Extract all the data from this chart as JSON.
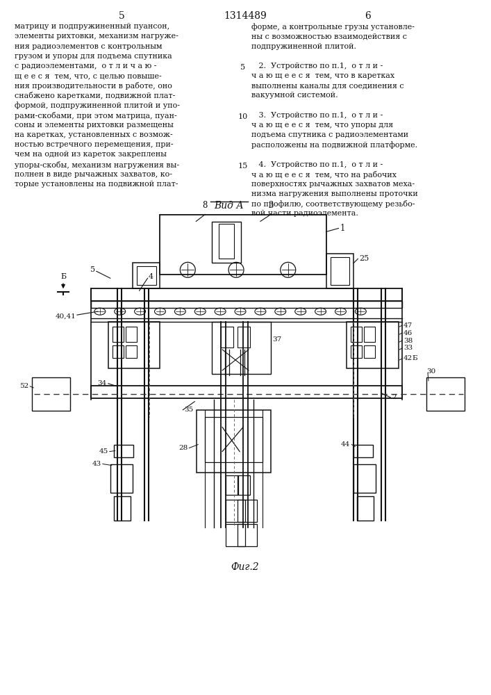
{
  "page_width": 7.07,
  "page_height": 10.0,
  "bg_color": "#ffffff",
  "header_page_left": "5",
  "header_patent": "1314489",
  "header_page_right": "6",
  "text_left_col": [
    "матрицу и подпружиненный пуансон,",
    "элементы рихтовки, механизм нагруже-",
    "ния радиоэлементов с контрольным",
    "грузом и упоры для подъема спутника",
    "с радиоэлементами,  о т л и ч а ю -",
    "щ е е с я  тем, что, с целью повыше-",
    "ния производительности в работе, оно",
    "снабжено каретками, подвижной плат-",
    "формой, подпружиненной плитой и упо-",
    "рами-скобами, при этом матрица, пуан-",
    "соны и элементы рихтовки размещены",
    "на каретках, установленных с возмож-",
    "ностью встречного перемещения, при-",
    "чем на одной из кареток закреплены",
    "упоры-скобы, механизм нагружения вы-",
    "полнен в виде рычажных захватов, ко-",
    "торые установлены на подвижной плат-"
  ],
  "text_right_col": [
    "форме, а контрольные грузы установле-",
    "ны с возможностью взаимодействия с",
    "подпружиненной плитой.",
    "",
    "   2.  Устройство по п.1,  о т л и -",
    "ч а ю щ е е с я  тем, что в каретках",
    "выполнены каналы для соединения с",
    "вакуумной системой.",
    "",
    "   3.  Устройство по п.1,  о т л и -",
    "ч а ю щ е е с я  тем, что упоры для",
    "подъема спутника с радиоэлементами",
    "расположены на подвижной платформе.",
    "",
    "   4.  Устройство по п.1,  о т л и -",
    "ч а ю щ е е с я  тем, что на рабочих",
    "поверхностях рычажных захватов меха-",
    "низма нагружения выполнены проточки",
    "по профилю, соответствующему резьбо-",
    "вой части радиоэлемента."
  ],
  "fig_caption": "Фиг.2",
  "view_label": "Вид А"
}
